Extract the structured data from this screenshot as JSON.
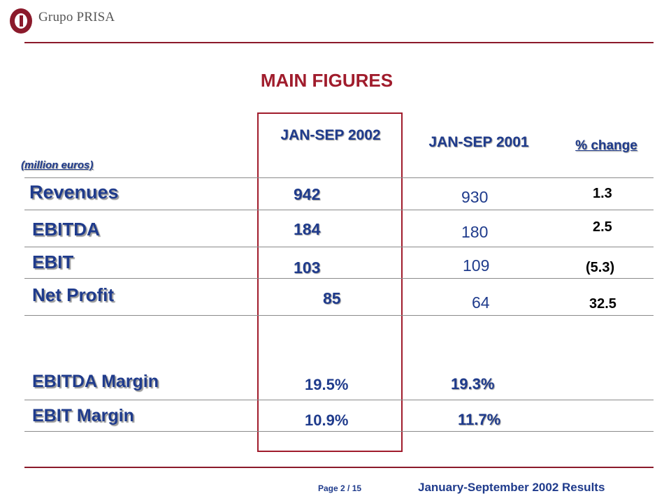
{
  "header": {
    "brand": "Grupo PRISA"
  },
  "title": "MAIN FIGURES",
  "columns": {
    "current": "JAN-SEP 2002",
    "previous": "JAN-SEP 2001",
    "change": "% change"
  },
  "units": "(million euros)",
  "rows": [
    {
      "label": "Revenues",
      "current": "942",
      "previous": "930",
      "change": "1.3"
    },
    {
      "label": "EBITDA",
      "current": "184",
      "previous": "180",
      "change": "2.5"
    },
    {
      "label": "EBIT",
      "current": "103",
      "previous": "109",
      "change": "(5.3)"
    },
    {
      "label": "Net Profit",
      "current": "85",
      "previous": "64",
      "change": "32.5"
    }
  ],
  "margins": [
    {
      "label": "EBITDA Margin",
      "current": "19.5%",
      "previous": "19.3%"
    },
    {
      "label": "EBIT Margin",
      "current": "10.9%",
      "previous": "11.7%"
    }
  ],
  "footer": {
    "page": "Page 2 / 15",
    "report_title": "January-September 2002 Results"
  },
  "colors": {
    "accent": "#a01c2c",
    "text_blue": "#1f3b8c"
  }
}
